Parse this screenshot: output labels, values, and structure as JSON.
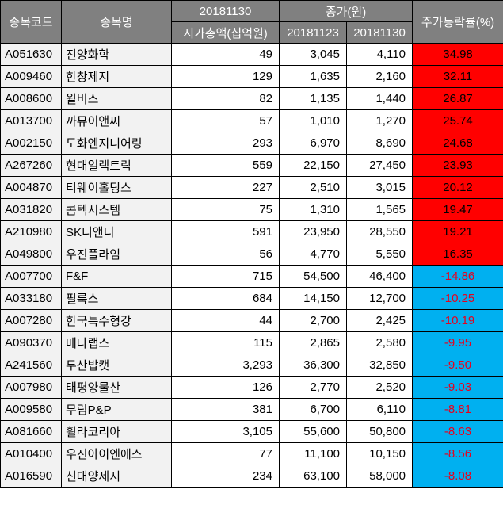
{
  "header": {
    "code": "종목코드",
    "name": "종목명",
    "date_top": "20181130",
    "close_group": "종가(원)",
    "change": "주가등락률(%)",
    "market_cap": "시가총액(십억원)",
    "close_date_1": "20181123",
    "close_date_2": "20181130"
  },
  "rows": [
    {
      "code": "A051630",
      "name": "진양화학",
      "mcap": "49",
      "close_1123": "3,045",
      "close_1130": "4,110",
      "change": "34.98",
      "dir": "up"
    },
    {
      "code": "A009460",
      "name": "한창제지",
      "mcap": "129",
      "close_1123": "1,635",
      "close_1130": "2,160",
      "change": "32.11",
      "dir": "up"
    },
    {
      "code": "A008600",
      "name": "윌비스",
      "mcap": "82",
      "close_1123": "1,135",
      "close_1130": "1,440",
      "change": "26.87",
      "dir": "up"
    },
    {
      "code": "A013700",
      "name": "까뮤이앤씨",
      "mcap": "57",
      "close_1123": "1,010",
      "close_1130": "1,270",
      "change": "25.74",
      "dir": "up"
    },
    {
      "code": "A002150",
      "name": "도화엔지니어링",
      "mcap": "293",
      "close_1123": "6,970",
      "close_1130": "8,690",
      "change": "24.68",
      "dir": "up"
    },
    {
      "code": "A267260",
      "name": "현대일렉트릭",
      "mcap": "559",
      "close_1123": "22,150",
      "close_1130": "27,450",
      "change": "23.93",
      "dir": "up"
    },
    {
      "code": "A004870",
      "name": "티웨이홀딩스",
      "mcap": "227",
      "close_1123": "2,510",
      "close_1130": "3,015",
      "change": "20.12",
      "dir": "up"
    },
    {
      "code": "A031820",
      "name": "콤텍시스템",
      "mcap": "75",
      "close_1123": "1,310",
      "close_1130": "1,565",
      "change": "19.47",
      "dir": "up"
    },
    {
      "code": "A210980",
      "name": "SK디앤디",
      "mcap": "591",
      "close_1123": "23,950",
      "close_1130": "28,550",
      "change": "19.21",
      "dir": "up"
    },
    {
      "code": "A049800",
      "name": "우진플라임",
      "mcap": "56",
      "close_1123": "4,770",
      "close_1130": "5,550",
      "change": "16.35",
      "dir": "up"
    },
    {
      "code": "A007700",
      "name": "F&F",
      "mcap": "715",
      "close_1123": "54,500",
      "close_1130": "46,400",
      "change": "-14.86",
      "dir": "down"
    },
    {
      "code": "A033180",
      "name": "필룩스",
      "mcap": "684",
      "close_1123": "14,150",
      "close_1130": "12,700",
      "change": "-10.25",
      "dir": "down"
    },
    {
      "code": "A007280",
      "name": "한국특수형강",
      "mcap": "44",
      "close_1123": "2,700",
      "close_1130": "2,425",
      "change": "-10.19",
      "dir": "down"
    },
    {
      "code": "A090370",
      "name": "메타랩스",
      "mcap": "115",
      "close_1123": "2,865",
      "close_1130": "2,580",
      "change": "-9.95",
      "dir": "down"
    },
    {
      "code": "A241560",
      "name": "두산밥캣",
      "mcap": "3,293",
      "close_1123": "36,300",
      "close_1130": "32,850",
      "change": "-9.50",
      "dir": "down"
    },
    {
      "code": "A007980",
      "name": "태평양물산",
      "mcap": "126",
      "close_1123": "2,770",
      "close_1130": "2,520",
      "change": "-9.03",
      "dir": "down"
    },
    {
      "code": "A009580",
      "name": "무림P&P",
      "mcap": "381",
      "close_1123": "6,700",
      "close_1130": "6,110",
      "change": "-8.81",
      "dir": "down"
    },
    {
      "code": "A081660",
      "name": "휠라코리아",
      "mcap": "3,105",
      "close_1123": "55,600",
      "close_1130": "50,800",
      "change": "-8.63",
      "dir": "down"
    },
    {
      "code": "A010400",
      "name": "우진아이엔에스",
      "mcap": "77",
      "close_1123": "11,100",
      "close_1130": "10,150",
      "change": "-8.56",
      "dir": "down"
    },
    {
      "code": "A016590",
      "name": "신대양제지",
      "mcap": "234",
      "close_1123": "63,100",
      "close_1130": "58,000",
      "change": "-8.08",
      "dir": "down"
    }
  ],
  "colors": {
    "header_bg": "#808080",
    "header_text": "#ffffff",
    "label_column_bg": "#f2f2f2",
    "value_column_bg": "#ffffff",
    "up_bg": "#ff0000",
    "up_text": "#000000",
    "down_bg": "#00b0f0",
    "down_text": "#e8001c",
    "border": "#000000"
  }
}
